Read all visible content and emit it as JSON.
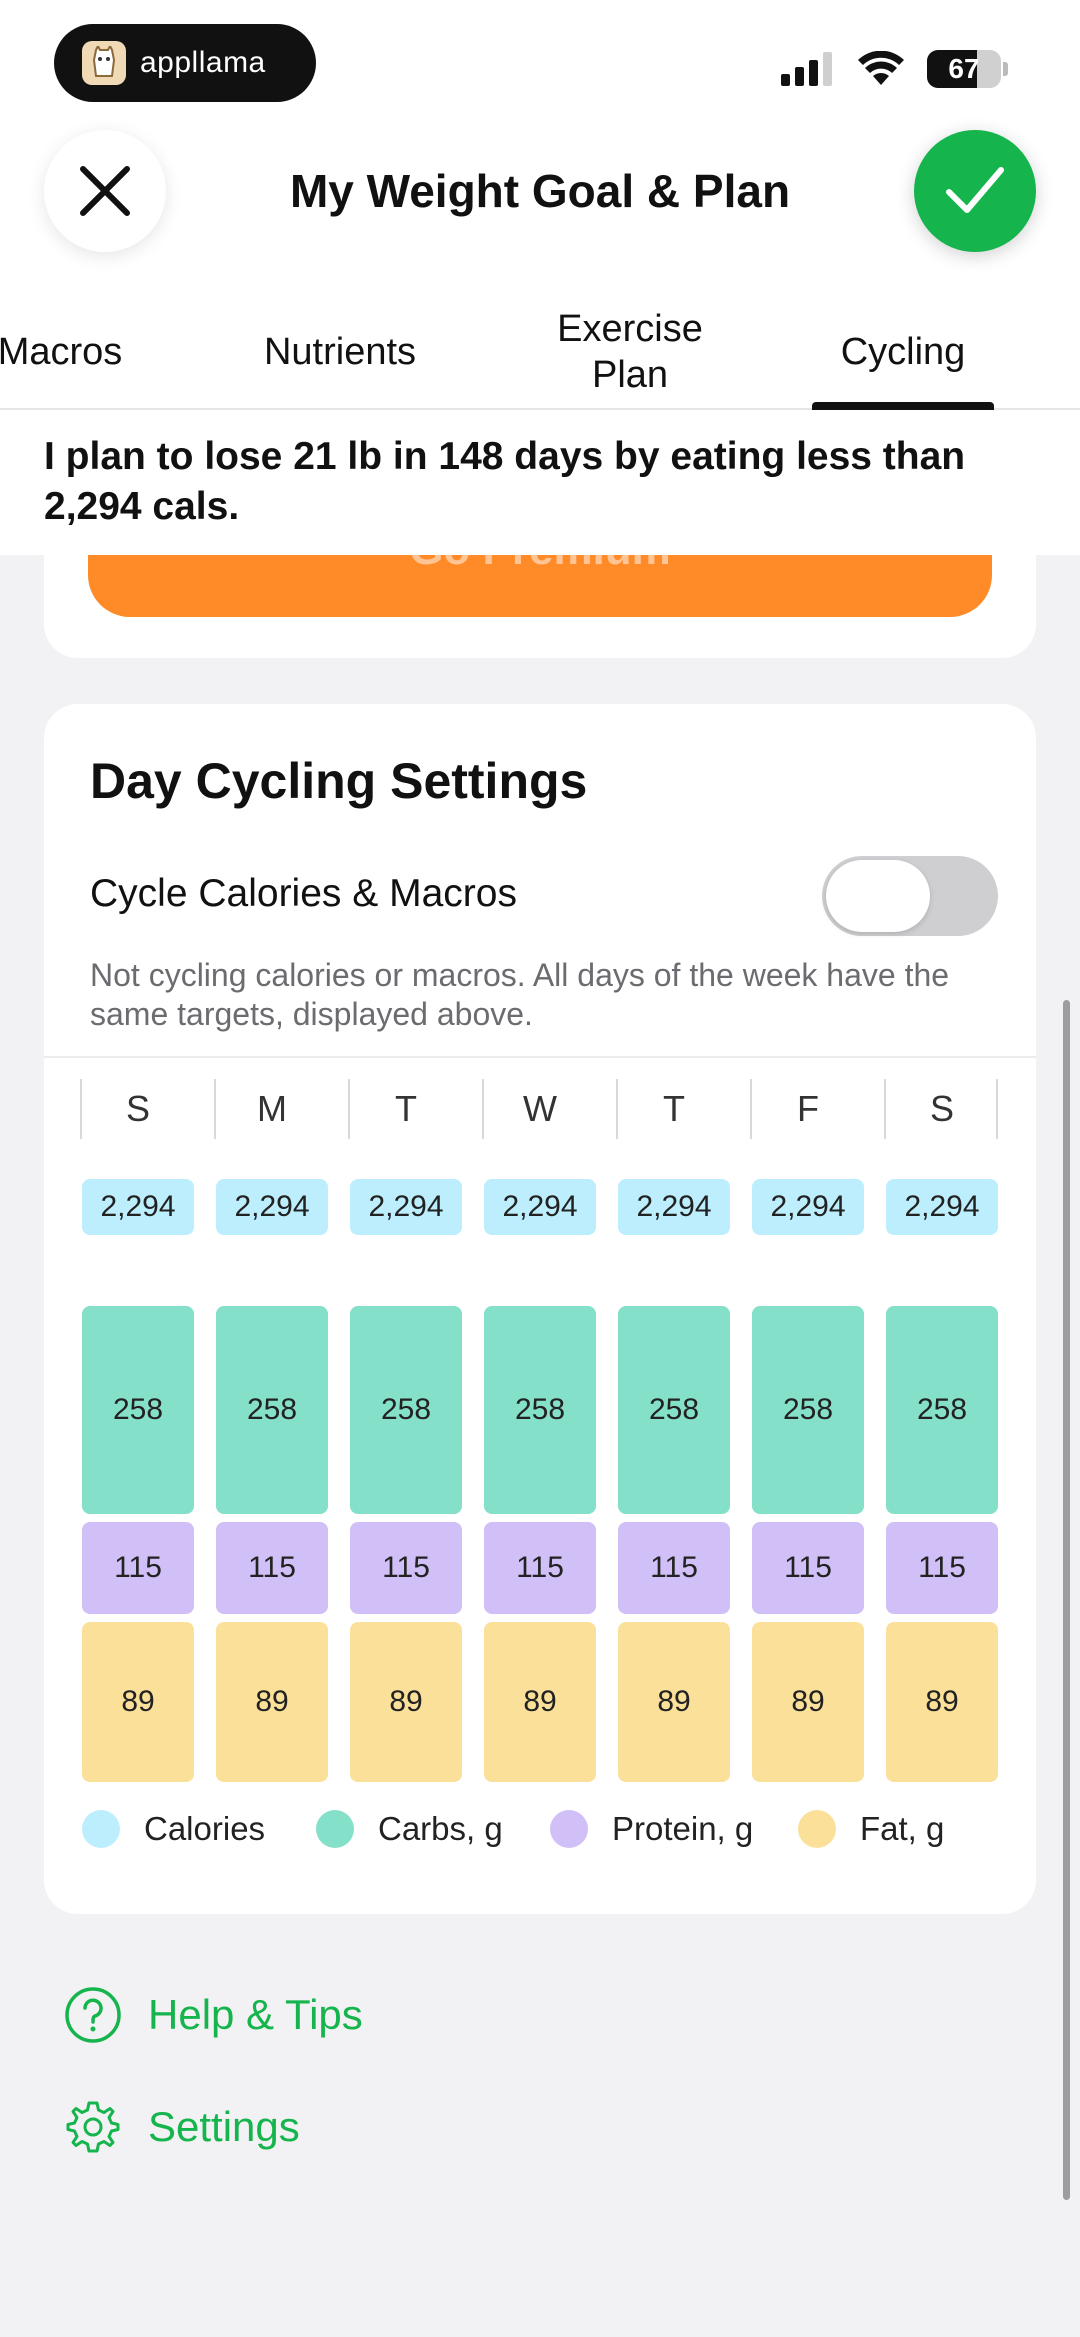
{
  "status": {
    "brand": "appllama",
    "battery": "67",
    "battery_level": 0.67
  },
  "header": {
    "title": "My Weight Goal & Plan"
  },
  "tabs": [
    {
      "label": "Macros",
      "active": false
    },
    {
      "label": "Nutrients",
      "active": false
    },
    {
      "label": "Exercise Plan",
      "active": false
    },
    {
      "label": "Cycling",
      "active": true
    }
  ],
  "summary": "I plan to lose 21 lb in 148 days by eating less than 2,294 cals.",
  "premium": {
    "label": "Go Premium"
  },
  "cycling": {
    "title": "Day Cycling Settings",
    "toggle_label": "Cycle Calories & Macros",
    "toggle_on": false,
    "note": "Not cycling calories or macros. All days of the week have the same targets, displayed above.",
    "days": [
      "S",
      "M",
      "T",
      "W",
      "T",
      "F",
      "S"
    ],
    "calories": [
      "2,294",
      "2,294",
      "2,294",
      "2,294",
      "2,294",
      "2,294",
      "2,294"
    ],
    "carbs": [
      "258",
      "258",
      "258",
      "258",
      "258",
      "258",
      "258"
    ],
    "protein": [
      "115",
      "115",
      "115",
      "115",
      "115",
      "115",
      "115"
    ],
    "fat": [
      "89",
      "89",
      "89",
      "89",
      "89",
      "89",
      "89"
    ],
    "legend": [
      {
        "label": "Calories",
        "color": "#bdeefd"
      },
      {
        "label": "Carbs, g",
        "color": "#84e0c9"
      },
      {
        "label": "Protein, g",
        "color": "#d1c0f7"
      },
      {
        "label": "Fat, g",
        "color": "#fbe09a"
      }
    ]
  },
  "links": {
    "help": "Help & Tips",
    "settings": "Settings"
  },
  "colors": {
    "accent": "#16b44c",
    "premium": "#ff8a28"
  }
}
